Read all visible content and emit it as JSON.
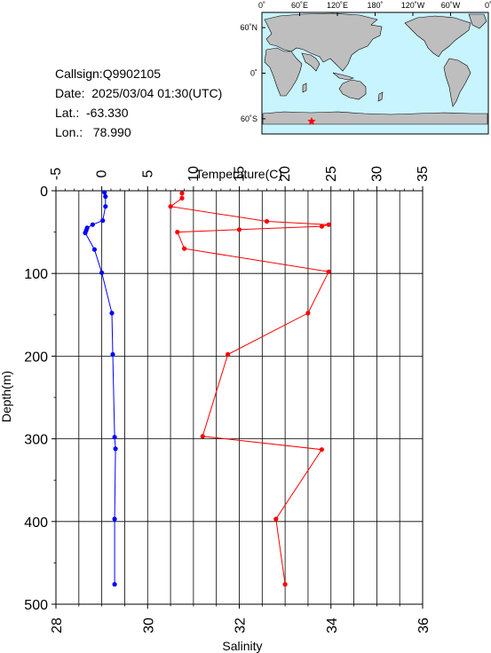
{
  "header": {
    "callsign": "Callsign:Q9902105",
    "date": "Date:  2025/03/04 01:30(UTC)",
    "lat": "Lat.:  -63.330",
    "lon": "Lon.:   78.990"
  },
  "map": {
    "top_ticks": [
      "0˚",
      "60˚E",
      "120˚E",
      "180˚",
      "120˚W",
      "60˚W",
      "0˚"
    ],
    "left_ticks": [
      "60˚N",
      "0˚",
      "60˚S"
    ],
    "marker": {
      "lon": 78.99,
      "lat": -63.33
    },
    "colors": {
      "ocean": "#c8f4ff",
      "land": "#bebebe",
      "marker": "#ff0000"
    }
  },
  "chart_data": {
    "type": "line",
    "title": "",
    "ylabel": "Depth(m)",
    "ylim": [
      0,
      500
    ],
    "yticks": [
      "0",
      "100",
      "200",
      "300",
      "400",
      "500"
    ],
    "top_axis": {
      "label": "Temperature(C)",
      "range": [
        -5,
        35
      ],
      "ticks": [
        "-5",
        "0",
        "5",
        "10",
        "15",
        "20",
        "25",
        "30",
        "35"
      ]
    },
    "bottom_axis": {
      "label": "Salinity",
      "range": [
        28,
        36
      ],
      "ticks": [
        "28",
        "30",
        "32",
        "34",
        "36"
      ]
    },
    "series": [
      {
        "axis": "top",
        "color": "#0000ff",
        "x": [
          0.3,
          0.4,
          0.4,
          0.1,
          -1.0,
          -1.6,
          -1.7,
          -1.8,
          -0.8,
          0.0,
          1.1,
          1.2,
          1.4,
          1.5,
          1.4,
          1.4
        ],
        "y": [
          2,
          7,
          19,
          36,
          41,
          45,
          48,
          51,
          71,
          99,
          148,
          198,
          298,
          312,
          397,
          476
        ]
      },
      {
        "axis": "bottom",
        "color": "#ff0000",
        "x": [
          30.75,
          30.75,
          30.5,
          32.6,
          33.95,
          33.8,
          32.0,
          30.65,
          30.8,
          33.95,
          33.5,
          31.75,
          31.2,
          33.8,
          32.8,
          33.0
        ],
        "y": [
          3,
          9,
          19,
          37,
          41,
          43,
          47,
          50,
          70,
          98,
          148,
          198,
          297,
          313,
          397,
          476
        ]
      }
    ]
  }
}
